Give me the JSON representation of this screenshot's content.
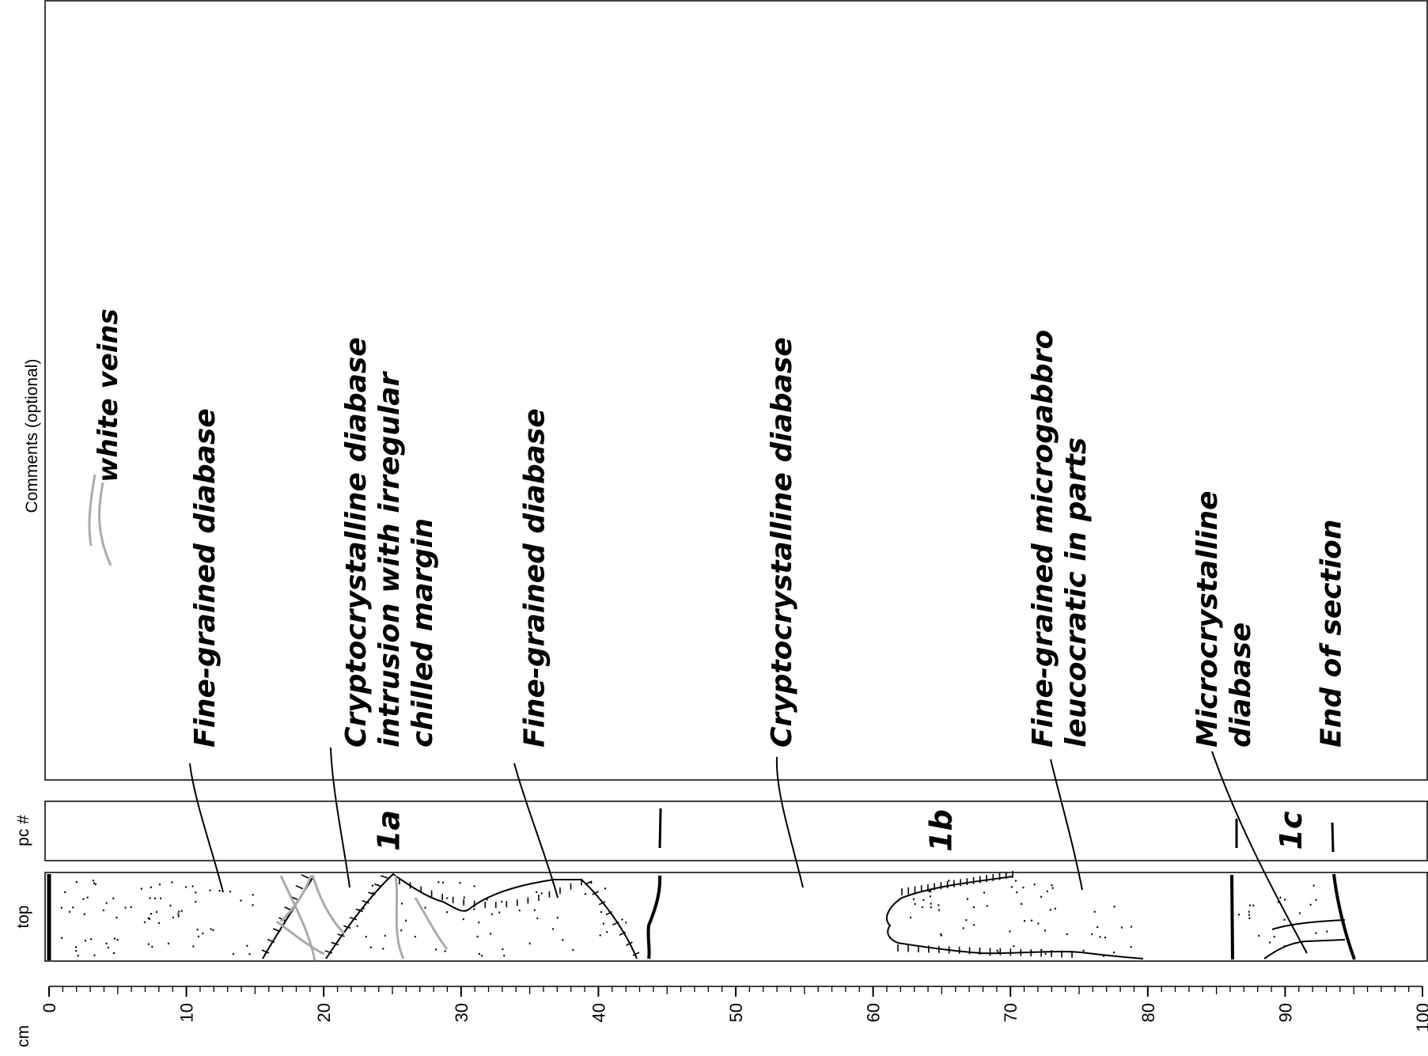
{
  "row_labels": {
    "comments": "Comments (optional)",
    "pc": "pc #",
    "top": "top",
    "cm": "cm"
  },
  "scale": {
    "min": 0,
    "max": 100,
    "major_step": 10,
    "minor_step": 1,
    "tick_labels": [
      "0",
      "10",
      "20",
      "30",
      "40",
      "50",
      "60",
      "70",
      "80",
      "90",
      "100"
    ]
  },
  "pieces": [
    {
      "label": "1a",
      "at_cm": 24.8
    },
    {
      "label": "1b",
      "at_cm": 65.0
    },
    {
      "label": "1c",
      "at_cm": 90.5
    }
  ],
  "piece_boundaries_cm": [
    44.6,
    86.0,
    93.5
  ],
  "comments": [
    {
      "at_cm": 11.0,
      "lines": [
        "Fine-grained diabase"
      ]
    },
    {
      "at_cm": 22.0,
      "lines": [
        "Cryptocrystalline diabase",
        "intrusion with irregular",
        "chilled margin"
      ]
    },
    {
      "at_cm": 35.0,
      "lines": [
        "Fine-grained diabase"
      ]
    },
    {
      "at_cm": 53.0,
      "lines": [
        "Cryptocrystalline diabase"
      ]
    },
    {
      "at_cm": 72.0,
      "lines": [
        "Fine-grained microgabbro",
        "leucocratic in parts"
      ]
    },
    {
      "at_cm": 84.0,
      "lines": [
        "Microcrystalline",
        "diabase"
      ]
    },
    {
      "at_cm": 93.0,
      "lines": [
        "End of section"
      ]
    }
  ],
  "legend": {
    "text": "white veins",
    "swatch_color": "#aaaaaa"
  },
  "colors": {
    "ink": "#000000",
    "vein": "#aaaaaa"
  }
}
